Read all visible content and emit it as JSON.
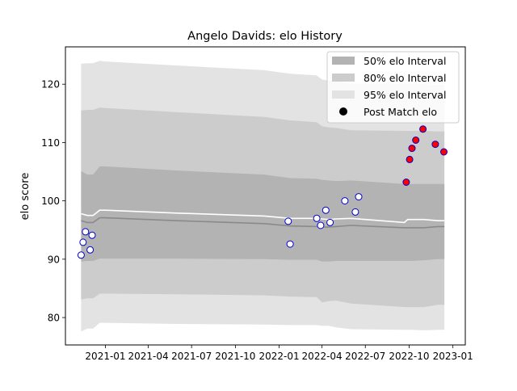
{
  "chart_data": {
    "type": "area",
    "title": "Angelo Davids: elo History",
    "xlabel": "",
    "ylabel": "elo score",
    "xlim": [
      "2020-10-09",
      "2023-01-27"
    ],
    "ylim": [
      75.3,
      126.4
    ],
    "x_ticks": [
      "2021-01",
      "2021-04",
      "2021-07",
      "2021-10",
      "2022-01",
      "2022-04",
      "2022-07",
      "2022-10",
      "2023-01"
    ],
    "y_ticks": [
      80,
      90,
      100,
      110,
      120
    ],
    "grid": false,
    "legend_position": "top-right",
    "legend": [
      {
        "label": "50% elo Interval",
        "kind": "patch",
        "color": "#b3b3b3"
      },
      {
        "label": "80% elo Interval",
        "kind": "patch",
        "color": "#cccccc"
      },
      {
        "label": "95% elo Interval",
        "kind": "patch",
        "color": "#e3e3e3"
      },
      {
        "label": "Post Match elo",
        "kind": "marker",
        "color": "#000000"
      }
    ],
    "x": [
      "2020-11-11",
      "2020-11-24",
      "2020-12-06",
      "2020-12-20",
      "2021-01-01",
      "2021-06-01",
      "2021-12-01",
      "2022-01-24",
      "2022-03-21",
      "2022-04-01",
      "2022-04-15",
      "2022-05-01",
      "2022-06-01",
      "2022-09-21",
      "2022-09-28",
      "2022-10-01",
      "2022-11-01",
      "2022-12-01",
      "2022-12-14"
    ],
    "mean": [
      97.8,
      97.5,
      97.5,
      98.4,
      98.4,
      97.9,
      97.4,
      97.0,
      97.0,
      96.9,
      96.8,
      96.9,
      97.0,
      96.3,
      96.8,
      96.8,
      96.8,
      96.6,
      96.6
    ],
    "median": [
      96.6,
      96.3,
      96.3,
      97.1,
      97.1,
      96.6,
      96.1,
      95.7,
      95.6,
      95.5,
      95.5,
      95.6,
      95.8,
      95.4,
      95.4,
      95.4,
      95.4,
      95.6,
      95.6
    ],
    "band50": {
      "lower": [
        89.6,
        89.7,
        89.7,
        90.1,
        90.1,
        90.1,
        90.0,
        89.9,
        89.9,
        89.6,
        89.6,
        89.7,
        89.7,
        89.7,
        89.7,
        89.7,
        89.8,
        90.0,
        90.0
      ],
      "upper": [
        105.1,
        104.5,
        104.5,
        105.9,
        105.9,
        105.2,
        104.5,
        103.9,
        103.8,
        103.6,
        103.5,
        103.4,
        103.5,
        102.9,
        102.9,
        102.9,
        102.9,
        102.9,
        102.9
      ]
    },
    "band80": {
      "lower": [
        83.1,
        83.3,
        83.3,
        84.1,
        84.1,
        84.0,
        83.8,
        83.6,
        83.5,
        82.6,
        82.8,
        82.9,
        82.4,
        81.8,
        81.8,
        81.8,
        81.8,
        82.2,
        82.2
      ]
    },
    "band95": {
      "lower": [
        77.6,
        78.1,
        78.1,
        79.1,
        79.1,
        78.9,
        78.8,
        78.7,
        78.7,
        78.6,
        78.6,
        78.3,
        78.0,
        77.9,
        77.9,
        77.9,
        77.8,
        77.9,
        77.9
      ],
      "upper": [
        123.5,
        123.6,
        123.6,
        124.0,
        123.9,
        123.2,
        122.4,
        121.8,
        121.5,
        120.8,
        120.6,
        120.5,
        120.1,
        120.0,
        120.0,
        120.0,
        120.0,
        119.9,
        119.9
      ]
    },
    "points": [
      {
        "date": "2020-11-11",
        "elo": 90.7,
        "style": "white"
      },
      {
        "date": "2020-11-15",
        "elo": 92.9,
        "style": "white"
      },
      {
        "date": "2020-11-20",
        "elo": 94.7,
        "style": "white"
      },
      {
        "date": "2020-11-30",
        "elo": 91.6,
        "style": "white"
      },
      {
        "date": "2020-12-04",
        "elo": 94.1,
        "style": "white"
      },
      {
        "date": "2022-01-20",
        "elo": 96.5,
        "style": "white"
      },
      {
        "date": "2022-01-24",
        "elo": 92.6,
        "style": "white"
      },
      {
        "date": "2022-03-21",
        "elo": 97.0,
        "style": "white"
      },
      {
        "date": "2022-03-29",
        "elo": 95.8,
        "style": "white"
      },
      {
        "date": "2022-04-09",
        "elo": 98.4,
        "style": "white"
      },
      {
        "date": "2022-04-18",
        "elo": 96.3,
        "style": "white"
      },
      {
        "date": "2022-05-19",
        "elo": 100.0,
        "style": "white"
      },
      {
        "date": "2022-06-10",
        "elo": 98.1,
        "style": "white"
      },
      {
        "date": "2022-06-17",
        "elo": 100.7,
        "style": "white"
      },
      {
        "date": "2022-09-25",
        "elo": 103.2,
        "style": "red"
      },
      {
        "date": "2022-10-02",
        "elo": 107.1,
        "style": "red"
      },
      {
        "date": "2022-10-07",
        "elo": 109.0,
        "style": "red"
      },
      {
        "date": "2022-10-15",
        "elo": 110.4,
        "style": "red"
      },
      {
        "date": "2022-10-30",
        "elo": 112.3,
        "style": "red"
      },
      {
        "date": "2022-11-25",
        "elo": 109.7,
        "style": "red"
      },
      {
        "date": "2022-12-13",
        "elo": 108.4,
        "style": "red"
      }
    ],
    "colors": {
      "band50": "#b3b3b3",
      "band80": "#cccccc",
      "band95": "#e3e3e3",
      "mean": "#ffffff",
      "median": "#8a8a8a",
      "point_edge": "#0000cc",
      "point_red": "#ff0000",
      "point_white": "#ffffff"
    }
  }
}
